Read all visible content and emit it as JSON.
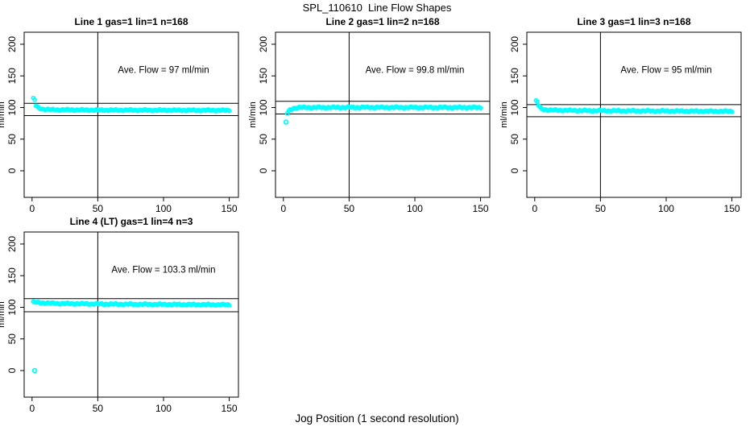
{
  "figure": {
    "title": "SPL_110610  Line Flow Shapes",
    "x_axis_label": "Jog Position (1 second resolution)"
  },
  "colors": {
    "point": "#00ffff",
    "axis": "#000000",
    "background": "#ffffff"
  },
  "chart_data": [
    {
      "type": "scatter",
      "title": "Line 1 gas=1 lin=1 n=168",
      "ylabel": "ml/min",
      "annotation": "Ave. Flow =  97  ml/min",
      "ave_flow_ml_min": 97,
      "n": 168,
      "x_ticks": [
        0,
        50,
        100,
        150
      ],
      "y_ticks": [
        0,
        50,
        100,
        150,
        200
      ],
      "xlim": [
        -6,
        157
      ],
      "ylim": [
        -42,
        219
      ],
      "vline_x": 50,
      "hlines": {
        "upper": 106.7,
        "lower": 87.3
      },
      "x_range": [
        1,
        150
      ],
      "points_profile": [
        [
          1,
          114
        ],
        [
          2,
          112
        ],
        [
          3,
          103
        ],
        [
          5,
          99
        ],
        [
          8,
          97.5
        ],
        [
          15,
          96.5
        ],
        [
          50,
          96
        ],
        [
          150,
          95.5
        ]
      ],
      "outliers": [],
      "annotation_at": [
        100,
        155
      ]
    },
    {
      "type": "scatter",
      "title": "Line 2 gas=1 lin=2 n=168",
      "ylabel": "ml/min",
      "annotation": "Ave. Flow =  99.8  ml/min",
      "ave_flow_ml_min": 99.8,
      "n": 168,
      "x_ticks": [
        0,
        50,
        100,
        150
      ],
      "y_ticks": [
        0,
        50,
        100,
        150,
        200
      ],
      "xlim": [
        -6,
        157
      ],
      "ylim": [
        -42,
        219
      ],
      "vline_x": 50,
      "hlines": {
        "upper": 109.8,
        "lower": 89.8
      },
      "x_range": [
        3,
        150
      ],
      "points_profile": [
        [
          3,
          91
        ],
        [
          5,
          96
        ],
        [
          8,
          99
        ],
        [
          12,
          100
        ],
        [
          60,
          100.2
        ],
        [
          150,
          100
        ]
      ],
      "outliers": [
        [
          2,
          77
        ]
      ],
      "annotation_at": [
        100,
        155
      ]
    },
    {
      "type": "scatter",
      "title": "Line 3 gas=1 lin=3 n=168",
      "ylabel": "ml/min",
      "annotation": "Ave. Flow =  95  ml/min",
      "ave_flow_ml_min": 95,
      "n": 168,
      "x_ticks": [
        0,
        50,
        100,
        150
      ],
      "y_ticks": [
        0,
        50,
        100,
        150,
        200
      ],
      "xlim": [
        -6,
        157
      ],
      "ylim": [
        -42,
        219
      ],
      "vline_x": 50,
      "hlines": {
        "upper": 104.5,
        "lower": 85.5
      },
      "x_range": [
        1,
        150
      ],
      "points_profile": [
        [
          1,
          110
        ],
        [
          2,
          109
        ],
        [
          3,
          103
        ],
        [
          5,
          98
        ],
        [
          10,
          96
        ],
        [
          40,
          95
        ],
        [
          150,
          94
        ]
      ],
      "outliers": [],
      "annotation_at": [
        100,
        155
      ]
    },
    {
      "type": "scatter",
      "title": "Line 4 (LT) gas=1 lin=4 n=3",
      "ylabel": "ml/min",
      "annotation": "Ave. Flow =  103.3  ml/min",
      "ave_flow_ml_min": 103.3,
      "n": 3,
      "x_ticks": [
        0,
        50,
        100,
        150
      ],
      "y_ticks": [
        0,
        50,
        100,
        150,
        200
      ],
      "xlim": [
        -6,
        157
      ],
      "ylim": [
        -42,
        219
      ],
      "vline_x": 50,
      "hlines": {
        "upper": 113.6,
        "lower": 93.0
      },
      "x_range": [
        1,
        150
      ],
      "points_profile": [
        [
          1,
          108
        ],
        [
          4,
          107.5
        ],
        [
          20,
          106
        ],
        [
          60,
          105
        ],
        [
          150,
          104
        ]
      ],
      "outliers": [
        [
          2,
          0
        ]
      ],
      "annotation_at": [
        100,
        155
      ]
    }
  ]
}
